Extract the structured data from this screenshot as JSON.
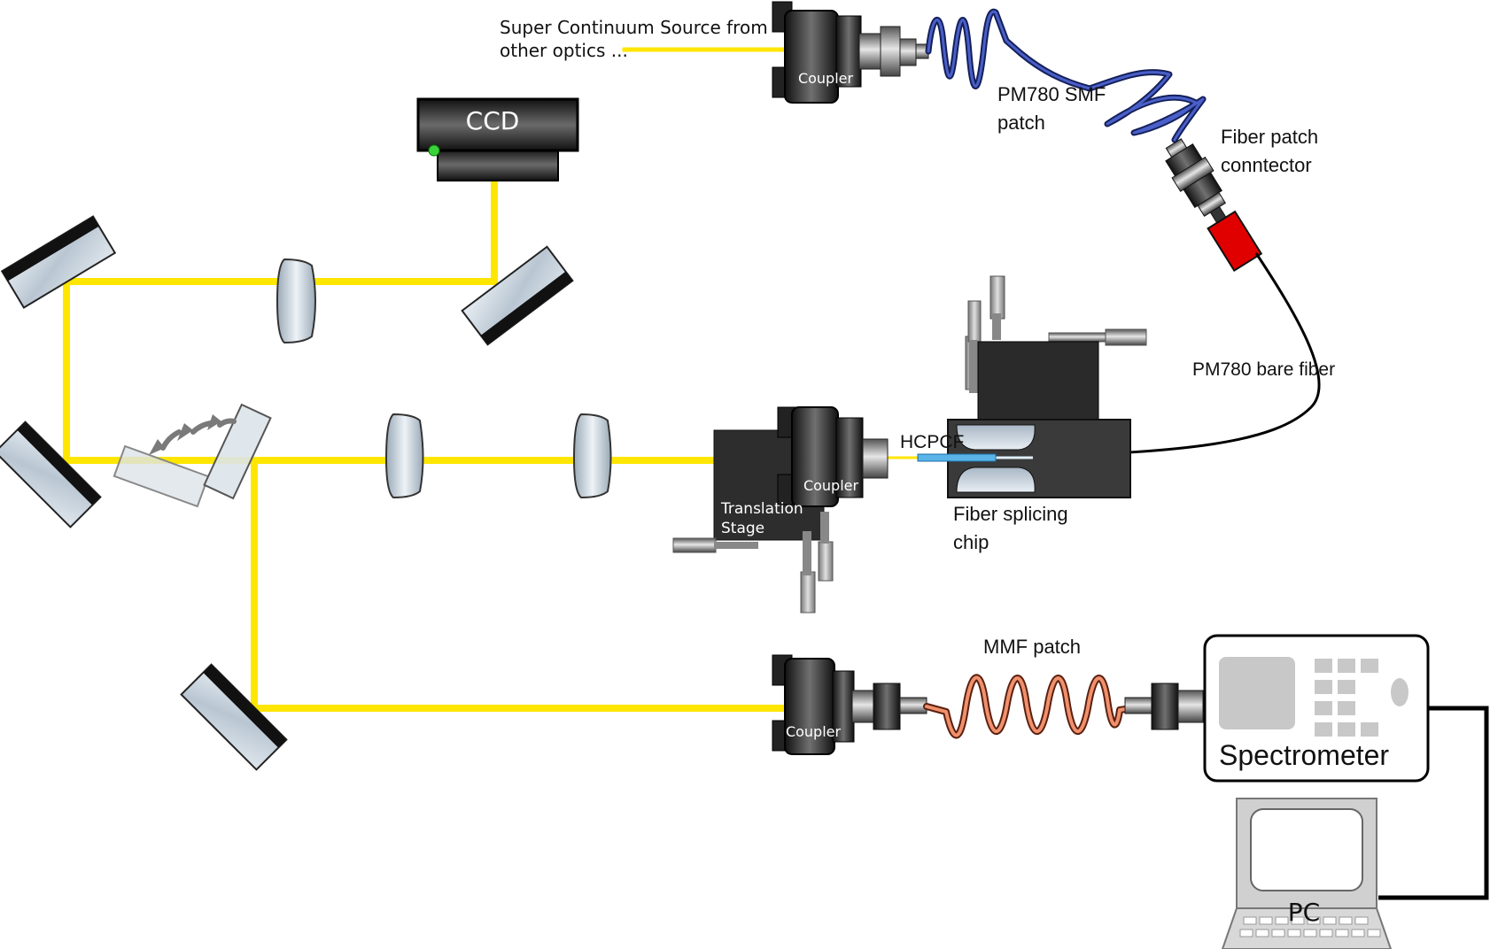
{
  "labels": {
    "source_line1": "Super Continuum Source from",
    "source_line2": "other  optics ...",
    "coupler_top": "Coupler",
    "coupler_mid": "Coupler",
    "coupler_bottom": "Coupler",
    "ccd": "CCD",
    "pm780_smf_line1": "PM780 SMF",
    "pm780_smf_line2": "patch",
    "fiber_connector_line1": "Fiber patch",
    "fiber_connector_line2": "conntector",
    "pm780_bare": "PM780 bare fiber",
    "hcpcf": "HCPCF",
    "splicing_line1": "Fiber splicing",
    "splicing_line2": "chip",
    "translation_line1": "Translation",
    "translation_line2": "Stage",
    "mmf_patch": "MMF patch",
    "spectrometer": "Spectrometer",
    "pc": "PC"
  },
  "colors": {
    "beam": "#ffe600",
    "smf_fiber": "#2a3a8c",
    "mmf_fiber": "#f0906c",
    "connector_red": "#e00000",
    "mirror_glass": "#cfd8e0",
    "mount_dark": "#2a2a2a",
    "hcpcf_blue": "#5ab4e8"
  }
}
